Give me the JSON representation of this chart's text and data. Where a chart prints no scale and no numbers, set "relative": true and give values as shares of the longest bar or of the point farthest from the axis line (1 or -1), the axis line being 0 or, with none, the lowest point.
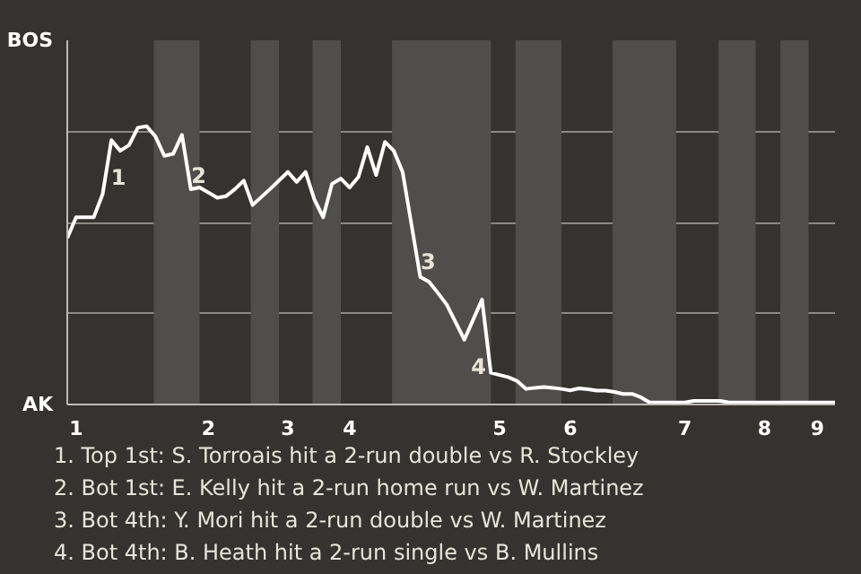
{
  "chart_data": {
    "type": "line",
    "color": "#ffffff",
    "relative": true,
    "categories": [
      null,
      "1",
      null,
      null,
      null,
      null,
      null,
      null,
      null,
      null,
      null,
      null,
      null,
      null,
      null,
      null,
      "2",
      null,
      null,
      null,
      null,
      null,
      null,
      null,
      null,
      "3",
      null,
      null,
      null,
      null,
      null,
      null,
      "4",
      null,
      null,
      null,
      null,
      null,
      null,
      null,
      null,
      null,
      null,
      null,
      null,
      null,
      null,
      null,
      null,
      "5",
      null,
      null,
      null,
      null,
      null,
      null,
      null,
      "6",
      null,
      null,
      null,
      null,
      null,
      null,
      null,
      null,
      null,
      null,
      null,
      null,
      "7",
      null,
      null,
      null,
      null,
      null,
      null,
      null,
      null,
      "8",
      null,
      null,
      null,
      null,
      null,
      "9",
      null,
      null
    ],
    "values": [
      0.598,
      0.673,
      0.673,
      0.673,
      0.755,
      0.95,
      0.912,
      0.932,
      0.995,
      1,
      0.963,
      0.894,
      0.901,
      0.969,
      0.774,
      0.78,
      0.762,
      0.743,
      0.749,
      0.774,
      0.805,
      0.717,
      0.746,
      0.775,
      0.805,
      0.836,
      0.8,
      0.836,
      0.737,
      0.673,
      0.793,
      0.812,
      0.78,
      0.818,
      0.925,
      0.825,
      0.944,
      0.912,
      0.836,
      0.648,
      0.459,
      0.441,
      0.401,
      0.359,
      0.296,
      0.233,
      0.305,
      0.377,
      0.114,
      0.106,
      0.098,
      0.084,
      0.056,
      0.06,
      0.063,
      0.06,
      0.056,
      0.051,
      0.058,
      0.055,
      0.05,
      0.05,
      0.045,
      0.038,
      0.038,
      0.026,
      0.007,
      0.007,
      0.007,
      0.007,
      0.007,
      0.013,
      0.013,
      0.013,
      0.013,
      0.007,
      0.007,
      0.007,
      0.007,
      0.007,
      0.007,
      0.007,
      0.007,
      0.007,
      0.007,
      0.007,
      0.007,
      0.007
    ],
    "grid": "y",
    "marker": "none",
    "line_style": "solid",
    "annotations": [
      "BOS",
      "AK",
      "1",
      "2",
      "3",
      "4",
      "1. Top 1st: S. Torroais hit a 2-run double vs R. Stockley",
      "2. Bot 1st: E. Kelly hit a 2-run home run vs W. Martinez",
      "3. Bot 4th: Y. Mori hit a 2-run double vs W. Martinez",
      "4. Bot 4th: B. Heath hit a 2-run single vs B. Mullins"
    ]
  }
}
